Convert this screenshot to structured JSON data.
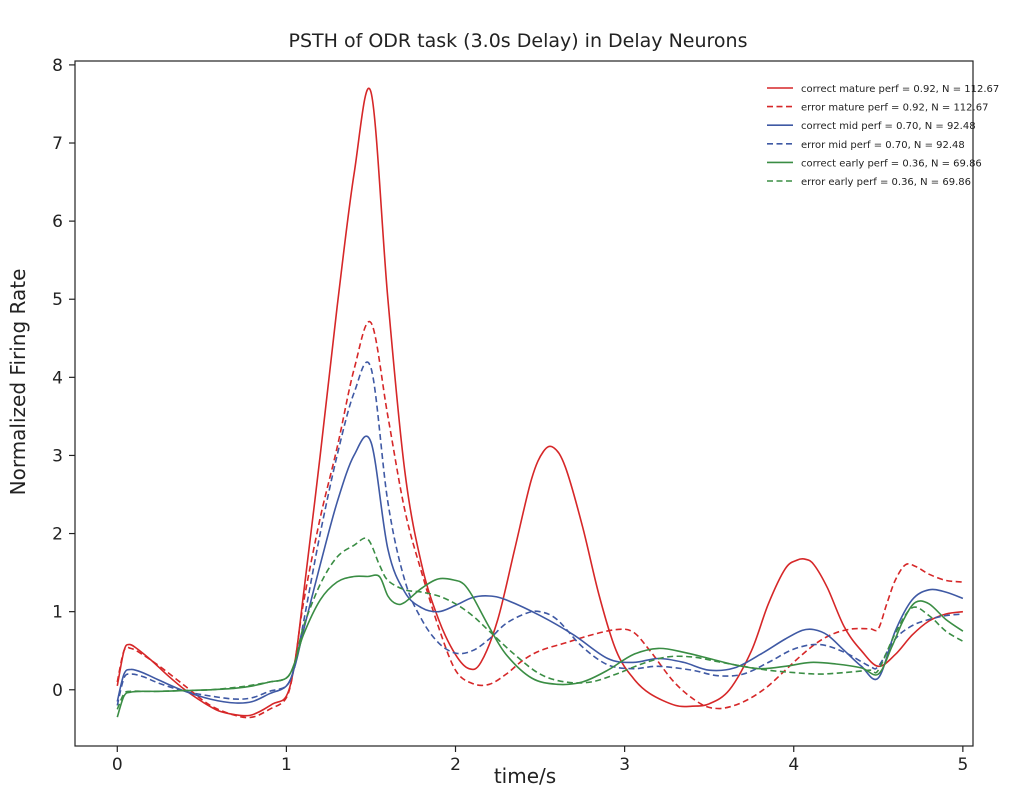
{
  "chart_data": {
    "type": "line",
    "title": "PSTH of ODR task (3.0s Delay) in Delay Neurons",
    "xlabel": "time/s",
    "ylabel": "Normalized Firing Rate",
    "xlim": [
      -0.25,
      5.06
    ],
    "ylim": [
      -0.72,
      8.05
    ],
    "xticks": [
      0,
      1,
      2,
      3,
      4,
      5
    ],
    "yticks": [
      0,
      1,
      2,
      3,
      4,
      5,
      6,
      7,
      8
    ],
    "grid": false,
    "legend_position": "top-right",
    "series": [
      {
        "name": "correct mature perf = 0.92, N = 112.67",
        "color": "#d62728",
        "style": "solid",
        "x": [
          0,
          0.04,
          0.07,
          0.12,
          0.2,
          0.3,
          0.4,
          0.5,
          0.6,
          0.7,
          0.78,
          0.85,
          0.92,
          1.0,
          1.05,
          1.1,
          1.2,
          1.3,
          1.4,
          1.5,
          1.6,
          1.7,
          1.8,
          1.9,
          2.0,
          2.08,
          2.15,
          2.25,
          2.35,
          2.45,
          2.52,
          2.58,
          2.65,
          2.75,
          2.85,
          2.95,
          3.05,
          3.15,
          3.3,
          3.4,
          3.5,
          3.62,
          3.75,
          3.85,
          3.95,
          4.02,
          4.07,
          4.12,
          4.2,
          4.3,
          4.4,
          4.5,
          4.6,
          4.7,
          4.8,
          4.9,
          5.0
        ],
        "y": [
          0.05,
          0.5,
          0.58,
          0.52,
          0.38,
          0.18,
          0.0,
          -0.15,
          -0.27,
          -0.32,
          -0.33,
          -0.27,
          -0.18,
          -0.08,
          0.35,
          1.2,
          3.0,
          4.9,
          6.6,
          7.65,
          5.0,
          2.8,
          1.6,
          0.9,
          0.45,
          0.27,
          0.35,
          0.9,
          1.8,
          2.7,
          3.05,
          3.1,
          2.85,
          2.1,
          1.2,
          0.5,
          0.15,
          -0.05,
          -0.2,
          -0.21,
          -0.18,
          0.0,
          0.5,
          1.1,
          1.55,
          1.66,
          1.67,
          1.6,
          1.3,
          0.8,
          0.5,
          0.3,
          0.45,
          0.7,
          0.88,
          0.97,
          1.0
        ]
      },
      {
        "name": "error mature perf = 0.92, N = 112.67",
        "color": "#d62728",
        "style": "dashed",
        "x": [
          0,
          0.04,
          0.08,
          0.15,
          0.25,
          0.4,
          0.55,
          0.7,
          0.8,
          0.9,
          1.0,
          1.05,
          1.1,
          1.2,
          1.3,
          1.4,
          1.5,
          1.6,
          1.7,
          1.8,
          1.9,
          2.0,
          2.1,
          2.2,
          2.3,
          2.4,
          2.5,
          2.65,
          2.8,
          2.95,
          3.05,
          3.15,
          3.3,
          3.45,
          3.55,
          3.65,
          3.75,
          3.85,
          3.95,
          4.05,
          4.15,
          4.25,
          4.35,
          4.45,
          4.5,
          4.55,
          4.6,
          4.66,
          4.72,
          4.8,
          4.9,
          5.0
        ],
        "y": [
          0.1,
          0.5,
          0.53,
          0.45,
          0.3,
          0.05,
          -0.2,
          -0.33,
          -0.35,
          -0.25,
          -0.1,
          0.35,
          1.1,
          2.2,
          3.1,
          4.1,
          4.7,
          3.5,
          2.3,
          1.5,
          0.8,
          0.25,
          0.08,
          0.07,
          0.2,
          0.38,
          0.5,
          0.6,
          0.7,
          0.77,
          0.74,
          0.5,
          0.08,
          -0.18,
          -0.24,
          -0.2,
          -0.1,
          0.05,
          0.25,
          0.45,
          0.62,
          0.73,
          0.78,
          0.78,
          0.78,
          1.1,
          1.4,
          1.6,
          1.58,
          1.48,
          1.4,
          1.38
        ]
      },
      {
        "name": "correct mid perf = 0.70, N = 92.48",
        "color": "#3f59a4",
        "style": "solid",
        "x": [
          0,
          0.04,
          0.08,
          0.15,
          0.25,
          0.4,
          0.55,
          0.7,
          0.8,
          0.9,
          1.0,
          1.05,
          1.1,
          1.2,
          1.3,
          1.4,
          1.5,
          1.6,
          1.7,
          1.8,
          1.9,
          2.0,
          2.1,
          2.2,
          2.3,
          2.5,
          2.7,
          2.9,
          3.05,
          3.2,
          3.35,
          3.5,
          3.65,
          3.8,
          3.95,
          4.05,
          4.12,
          4.2,
          4.3,
          4.4,
          4.5,
          4.6,
          4.7,
          4.8,
          4.9,
          5.0
        ],
        "y": [
          -0.15,
          0.2,
          0.26,
          0.22,
          0.12,
          -0.02,
          -0.12,
          -0.17,
          -0.15,
          -0.05,
          0.05,
          0.3,
          0.75,
          1.6,
          2.4,
          3.0,
          3.17,
          1.8,
          1.25,
          1.05,
          1.0,
          1.08,
          1.18,
          1.2,
          1.15,
          0.95,
          0.7,
          0.4,
          0.35,
          0.4,
          0.35,
          0.25,
          0.28,
          0.45,
          0.65,
          0.76,
          0.77,
          0.7,
          0.5,
          0.3,
          0.15,
          0.75,
          1.15,
          1.28,
          1.25,
          1.17
        ]
      },
      {
        "name": "error mid perf = 0.70, N = 92.48",
        "color": "#3f59a4",
        "style": "dashed",
        "x": [
          0,
          0.04,
          0.08,
          0.15,
          0.25,
          0.4,
          0.55,
          0.7,
          0.8,
          0.9,
          1.0,
          1.05,
          1.1,
          1.2,
          1.3,
          1.4,
          1.5,
          1.6,
          1.7,
          1.8,
          1.9,
          2.0,
          2.1,
          2.2,
          2.3,
          2.42,
          2.5,
          2.6,
          2.75,
          2.9,
          3.05,
          3.2,
          3.4,
          3.55,
          3.7,
          3.85,
          4.0,
          4.15,
          4.3,
          4.45,
          4.5,
          4.6,
          4.7,
          4.8,
          4.9,
          5.0
        ],
        "y": [
          -0.2,
          0.15,
          0.2,
          0.17,
          0.08,
          -0.02,
          -0.08,
          -0.12,
          -0.1,
          -0.02,
          0.05,
          0.3,
          0.85,
          2.0,
          3.0,
          3.8,
          4.12,
          2.4,
          1.4,
          0.9,
          0.6,
          0.47,
          0.5,
          0.65,
          0.85,
          0.98,
          1.0,
          0.9,
          0.55,
          0.32,
          0.27,
          0.3,
          0.25,
          0.18,
          0.2,
          0.35,
          0.52,
          0.58,
          0.48,
          0.3,
          0.3,
          0.65,
          0.82,
          0.9,
          0.95,
          0.97
        ]
      },
      {
        "name": "correct early perf = 0.36, N = 69.86",
        "color": "#3a8d44",
        "style": "solid",
        "x": [
          0,
          0.04,
          0.08,
          0.15,
          0.25,
          0.4,
          0.55,
          0.7,
          0.8,
          0.9,
          1.0,
          1.05,
          1.1,
          1.2,
          1.3,
          1.4,
          1.48,
          1.55,
          1.6,
          1.65,
          1.7,
          1.8,
          1.9,
          2.0,
          2.05,
          2.1,
          2.2,
          2.3,
          2.45,
          2.6,
          2.75,
          2.9,
          3.05,
          3.2,
          3.35,
          3.5,
          3.65,
          3.8,
          3.95,
          4.1,
          4.25,
          4.4,
          4.5,
          4.58,
          4.65,
          4.72,
          4.8,
          4.9,
          5.0
        ],
        "y": [
          -0.35,
          -0.08,
          -0.03,
          -0.02,
          -0.02,
          -0.01,
          0.0,
          0.02,
          0.05,
          0.1,
          0.15,
          0.35,
          0.7,
          1.15,
          1.38,
          1.45,
          1.45,
          1.45,
          1.2,
          1.1,
          1.12,
          1.3,
          1.42,
          1.4,
          1.35,
          1.2,
          0.8,
          0.45,
          0.15,
          0.07,
          0.1,
          0.25,
          0.45,
          0.53,
          0.48,
          0.4,
          0.32,
          0.27,
          0.3,
          0.35,
          0.33,
          0.28,
          0.2,
          0.55,
          0.9,
          1.12,
          1.1,
          0.9,
          0.75
        ]
      },
      {
        "name": "error early perf = 0.36, N = 69.86",
        "color": "#3a8d44",
        "style": "dashed",
        "x": [
          0,
          0.04,
          0.08,
          0.15,
          0.25,
          0.4,
          0.55,
          0.7,
          0.8,
          0.9,
          1.0,
          1.05,
          1.1,
          1.2,
          1.3,
          1.4,
          1.48,
          1.55,
          1.6,
          1.7,
          1.8,
          1.9,
          2.0,
          2.1,
          2.2,
          2.35,
          2.5,
          2.65,
          2.8,
          2.95,
          3.1,
          3.25,
          3.4,
          3.55,
          3.7,
          3.85,
          4.0,
          4.15,
          4.3,
          4.45,
          4.5,
          4.6,
          4.7,
          4.8,
          4.9,
          5.0
        ],
        "y": [
          -0.25,
          -0.05,
          -0.02,
          -0.02,
          -0.02,
          -0.01,
          0.0,
          0.03,
          0.06,
          0.1,
          0.15,
          0.35,
          0.8,
          1.35,
          1.7,
          1.85,
          1.93,
          1.6,
          1.4,
          1.28,
          1.25,
          1.2,
          1.1,
          0.95,
          0.75,
          0.45,
          0.2,
          0.1,
          0.1,
          0.2,
          0.33,
          0.42,
          0.42,
          0.36,
          0.3,
          0.25,
          0.22,
          0.2,
          0.22,
          0.25,
          0.25,
          0.72,
          1.05,
          0.95,
          0.75,
          0.62
        ]
      }
    ]
  }
}
